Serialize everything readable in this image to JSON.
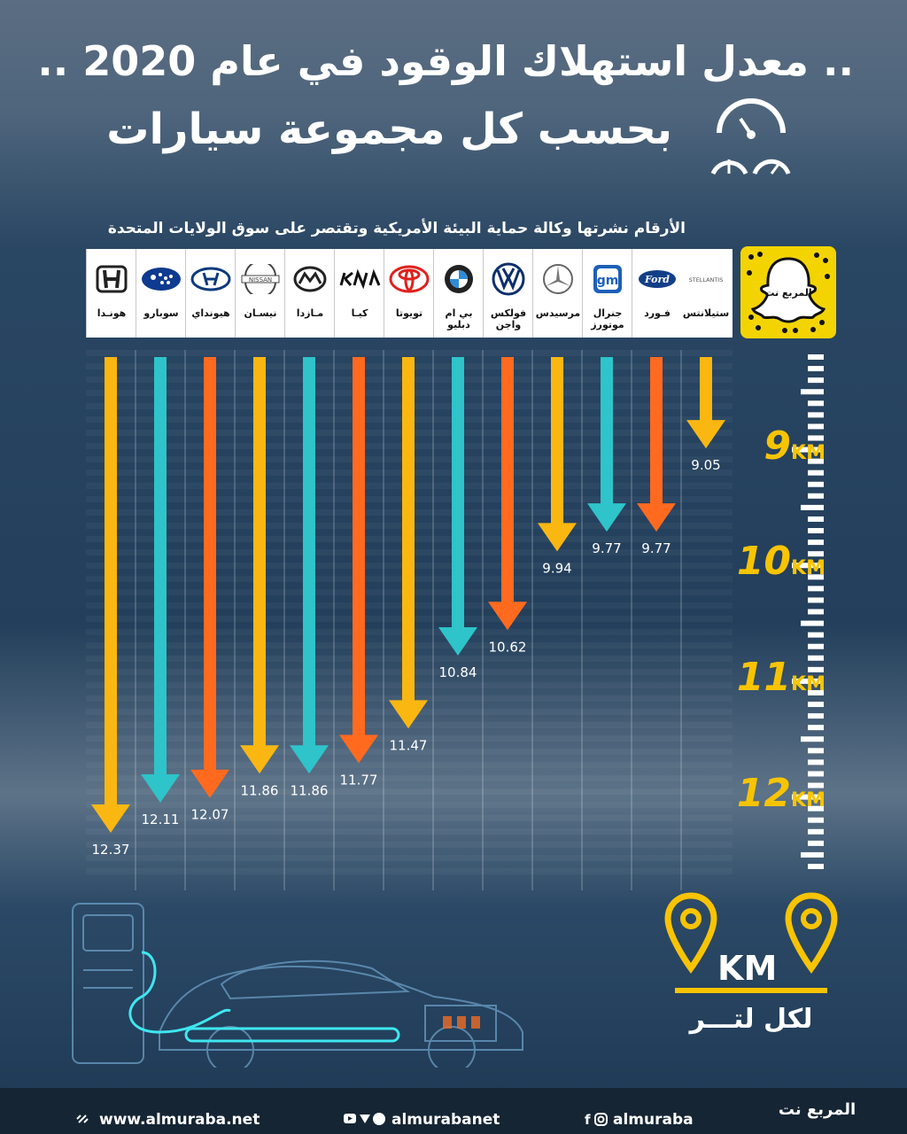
{
  "header": {
    "title_line1": ".. معدل استهلاك الوقود في عام 2020 ..",
    "title_line2": "بحسب كل مجموعة سيارات",
    "subtitle": "الأرقام نشرتها وكالة حماية البيئة الأمريكية وتقتصر على سوق الولايات المتحدة"
  },
  "chart_data": {
    "type": "bar",
    "orientation": "vertical-arrows",
    "unit": "KM",
    "unit_caption": "لكل لتـــر",
    "categories": [
      "هونـدا",
      "سوبارو",
      "هيونداي",
      "نيسـان",
      "مـازدا",
      "كيـا",
      "تويوتا",
      "بي ام دبليو",
      "فولكس واجن",
      "مرسيدس",
      "جنرال موتورز",
      "فـورد",
      "ستيلانتس"
    ],
    "values": [
      12.37,
      12.11,
      12.07,
      11.86,
      11.86,
      11.77,
      11.47,
      10.84,
      10.62,
      9.94,
      9.77,
      9.77,
      9.05
    ],
    "value_labels": [
      "12.37",
      "12.11",
      "12.07",
      "11.86",
      "11.86",
      "11.77",
      "11.47",
      "10.84",
      "10.62",
      "9.94",
      "9.77",
      "9.77",
      "9.05"
    ],
    "brand_logos": [
      "HONDA",
      "SUBARU",
      "HYUNDAI",
      "NISSAN",
      "MAZDA",
      "KIA",
      "TOYOTA",
      "BMW",
      "VW",
      "MERCEDES",
      "GM",
      "Ford",
      "STELLANTIS"
    ],
    "colors": [
      "#fbb711",
      "#2ec4c9",
      "#ff6a1f",
      "#fbb711",
      "#2ec4c9",
      "#ff6a1f",
      "#fbb711",
      "#2ec4c9",
      "#ff6a1f",
      "#fbb711",
      "#2ec4c9",
      "#ff6a1f",
      "#fbb711"
    ],
    "scale_ticks": [
      "9",
      "10",
      "11",
      "12"
    ],
    "scale_unit": "KM",
    "y_range": [
      8.2,
      12.6
    ]
  },
  "footer": {
    "website": "www.almuraba.net",
    "social_1": "almurabanet",
    "social_2": "almuraba",
    "brand": "المربع نت"
  },
  "snapcode": {
    "brand": "المربع نت"
  }
}
